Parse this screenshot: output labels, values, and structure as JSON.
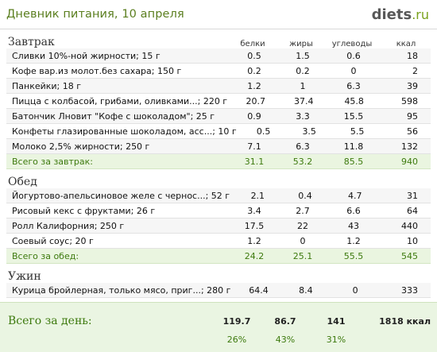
{
  "header": {
    "title": "Дневник питания, 10 апреля",
    "logo_main": "diets",
    "logo_tld": ".ru"
  },
  "columns": {
    "protein": "белки",
    "fat": "жиры",
    "carbs": "углеводы",
    "kcal": "ккал"
  },
  "meals": [
    {
      "name": "Завтрак",
      "items": [
        {
          "name": "Сливки 10%-ной жирности; 15 г",
          "protein": "0.5",
          "fat": "1.5",
          "carbs": "0.6",
          "kcal": "18"
        },
        {
          "name": "Кофе вар.из молот.без сахара; 150 г",
          "protein": "0.2",
          "fat": "0.2",
          "carbs": "0",
          "kcal": "2"
        },
        {
          "name": "Панкейки; 18 г",
          "protein": "1.2",
          "fat": "1",
          "carbs": "6.3",
          "kcal": "39"
        },
        {
          "name": "Пицца с колбасой, грибами, оливками...; 220 г",
          "protein": "20.7",
          "fat": "37.4",
          "carbs": "45.8",
          "kcal": "598"
        },
        {
          "name": "Батончик Лновит \"Кофе с шоколадом\"; 25 г",
          "protein": "0.9",
          "fat": "3.3",
          "carbs": "15.5",
          "kcal": "95"
        },
        {
          "name": "Конфеты глазированные шоколадом, асс...; 10 г",
          "protein": "0.5",
          "fat": "3.5",
          "carbs": "5.5",
          "kcal": "56"
        },
        {
          "name": "Молоко 2,5% жирности; 250 г",
          "protein": "7.1",
          "fat": "6.3",
          "carbs": "11.8",
          "kcal": "132"
        }
      ],
      "total": {
        "label": "Всего за завтрак:",
        "protein": "31.1",
        "fat": "53.2",
        "carbs": "85.5",
        "kcal": "940"
      }
    },
    {
      "name": "Обед",
      "items": [
        {
          "name": "Йогуртово-апельсиновое желе с чернос...; 52 г",
          "protein": "2.1",
          "fat": "0.4",
          "carbs": "4.7",
          "kcal": "31"
        },
        {
          "name": "Рисовый кекс с фруктами; 26 г",
          "protein": "3.4",
          "fat": "2.7",
          "carbs": "6.6",
          "kcal": "64"
        },
        {
          "name": "Ролл Калифорния; 250 г",
          "protein": "17.5",
          "fat": "22",
          "carbs": "43",
          "kcal": "440"
        },
        {
          "name": "Соевый соус; 20 г",
          "protein": "1.2",
          "fat": "0",
          "carbs": "1.2",
          "kcal": "10"
        }
      ],
      "total": {
        "label": "Всего за обед:",
        "protein": "24.2",
        "fat": "25.1",
        "carbs": "55.5",
        "kcal": "545"
      }
    },
    {
      "name": "Ужин",
      "items": [
        {
          "name": "Курица бройлерная, только мясо, приг...; 280 г",
          "protein": "64.4",
          "fat": "8.4",
          "carbs": "0",
          "kcal": "333"
        }
      ]
    }
  ],
  "day": {
    "label": "Всего за день:",
    "protein": "119.7",
    "fat": "86.7",
    "carbs": "141",
    "kcal": "1818 ккал",
    "protein_pct": "26%",
    "fat_pct": "43%",
    "carbs_pct": "31%"
  }
}
